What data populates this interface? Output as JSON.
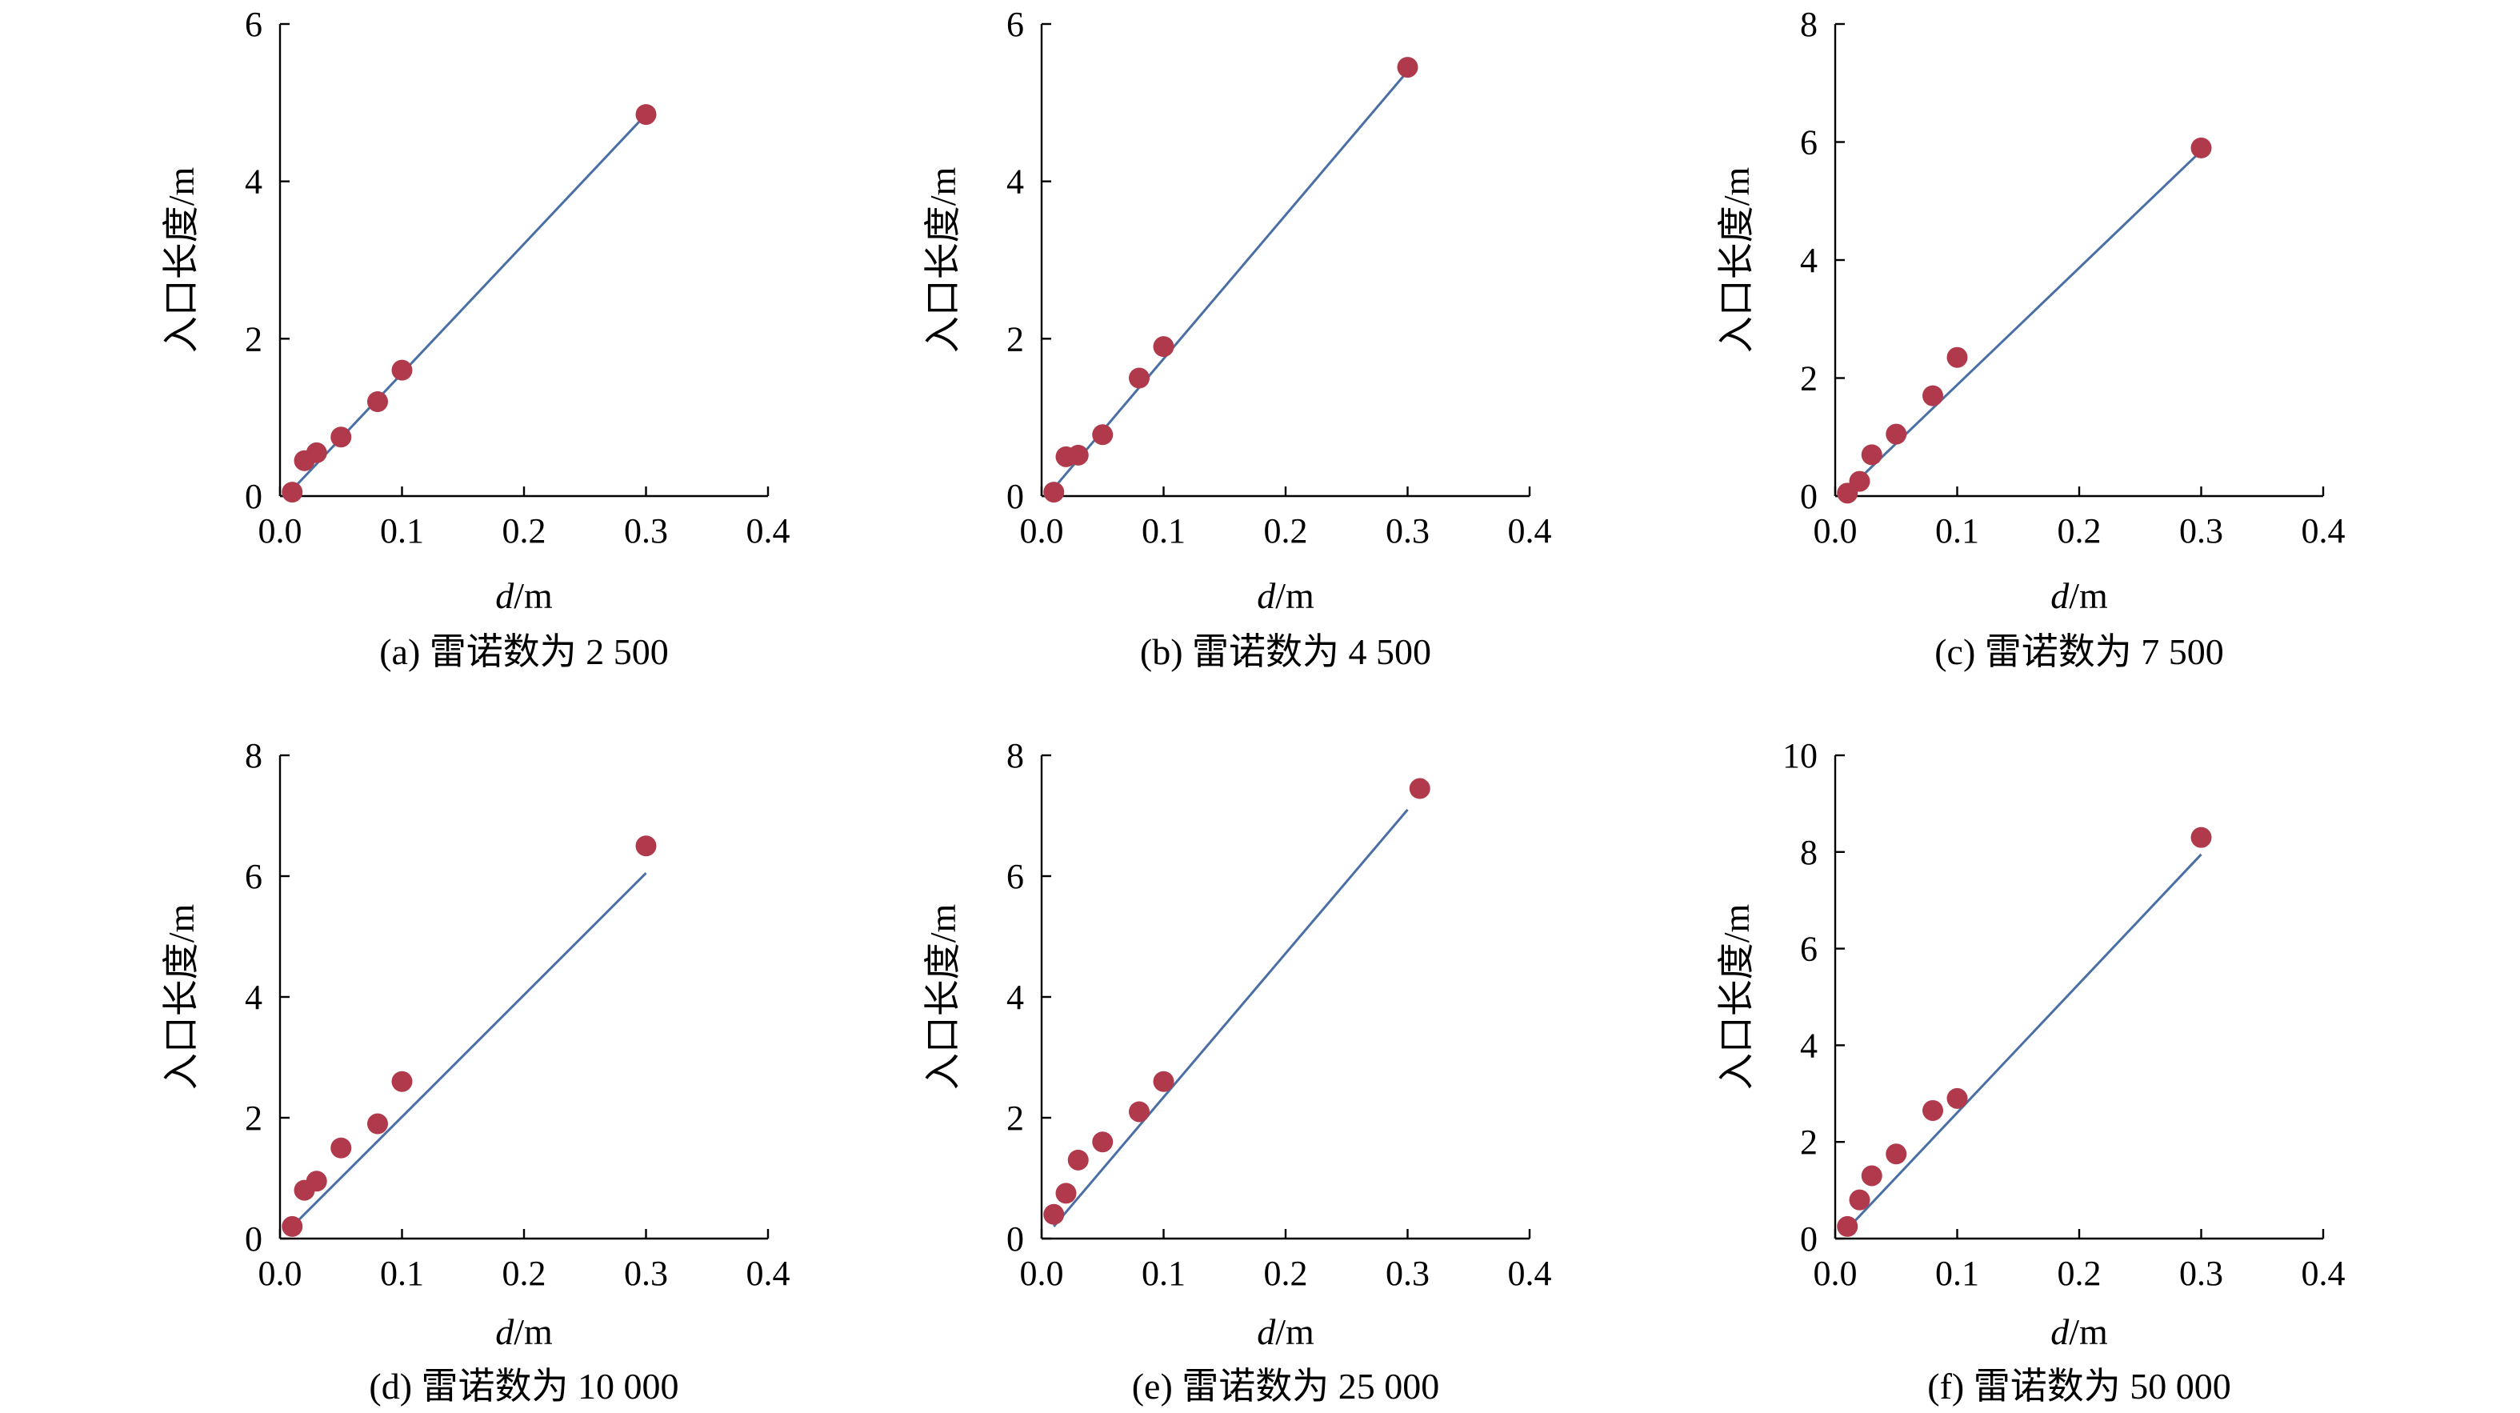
{
  "figure": {
    "colors": {
      "points": "#b03a4b",
      "fit_line": "#4a6fa5",
      "axes": "#000000"
    }
  },
  "chart_data": [
    {
      "type": "scatter",
      "caption": "(a) 雷诺数为 2 500",
      "xlabel_italic": "d",
      "xlabel_unit": "/m",
      "ylabel": "入口长度/m",
      "xlim": [
        0,
        0.4
      ],
      "ylim": [
        0,
        6
      ],
      "xticks": [
        0,
        0.1,
        0.2,
        0.3,
        0.4
      ],
      "xtick_labels": [
        "0.0",
        "0.1",
        "0.2",
        "0.3",
        "0.4"
      ],
      "yticks": [
        0,
        2,
        4,
        6
      ],
      "ytick_labels": [
        "0",
        "2",
        "4",
        "6"
      ],
      "grid": false,
      "points": [
        {
          "x": 0.01,
          "y": 0.05
        },
        {
          "x": 0.02,
          "y": 0.45
        },
        {
          "x": 0.03,
          "y": 0.55
        },
        {
          "x": 0.05,
          "y": 0.75
        },
        {
          "x": 0.08,
          "y": 1.2
        },
        {
          "x": 0.1,
          "y": 1.6
        },
        {
          "x": 0.3,
          "y": 4.85
        }
      ],
      "fit_line": [
        {
          "x": 0.01,
          "y": 0.08
        },
        {
          "x": 0.3,
          "y": 4.85
        }
      ]
    },
    {
      "type": "scatter",
      "caption": "(b) 雷诺数为 4 500",
      "xlabel_italic": "d",
      "xlabel_unit": "/m",
      "ylabel": "入口长度/m",
      "xlim": [
        0,
        0.4
      ],
      "ylim": [
        0,
        6
      ],
      "xticks": [
        0,
        0.1,
        0.2,
        0.3,
        0.4
      ],
      "xtick_labels": [
        "0.0",
        "0.1",
        "0.2",
        "0.3",
        "0.4"
      ],
      "yticks": [
        0,
        2,
        4,
        6
      ],
      "ytick_labels": [
        "0",
        "2",
        "4",
        "6"
      ],
      "grid": false,
      "points": [
        {
          "x": 0.01,
          "y": 0.05
        },
        {
          "x": 0.02,
          "y": 0.5
        },
        {
          "x": 0.03,
          "y": 0.52
        },
        {
          "x": 0.05,
          "y": 0.78
        },
        {
          "x": 0.08,
          "y": 1.5
        },
        {
          "x": 0.1,
          "y": 1.9
        },
        {
          "x": 0.3,
          "y": 5.45
        }
      ],
      "fit_line": [
        {
          "x": 0.01,
          "y": 0.1
        },
        {
          "x": 0.3,
          "y": 5.4
        }
      ]
    },
    {
      "type": "scatter",
      "caption": "(c) 雷诺数为 7 500",
      "xlabel_italic": "d",
      "xlabel_unit": "/m",
      "ylabel": "入口长度/m",
      "xlim": [
        0,
        0.4
      ],
      "ylim": [
        0,
        8
      ],
      "xticks": [
        0,
        0.1,
        0.2,
        0.3,
        0.4
      ],
      "xtick_labels": [
        "0.0",
        "0.1",
        "0.2",
        "0.3",
        "0.4"
      ],
      "yticks": [
        0,
        2,
        4,
        6,
        8
      ],
      "ytick_labels": [
        "0",
        "2",
        "4",
        "6",
        "8"
      ],
      "grid": false,
      "points": [
        {
          "x": 0.01,
          "y": 0.05
        },
        {
          "x": 0.02,
          "y": 0.25
        },
        {
          "x": 0.03,
          "y": 0.7
        },
        {
          "x": 0.05,
          "y": 1.05
        },
        {
          "x": 0.08,
          "y": 1.7
        },
        {
          "x": 0.1,
          "y": 2.35
        },
        {
          "x": 0.3,
          "y": 5.9
        }
      ],
      "fit_line": [
        {
          "x": 0.01,
          "y": 0.1
        },
        {
          "x": 0.3,
          "y": 5.85
        }
      ]
    },
    {
      "type": "scatter",
      "caption": "(d) 雷诺数为 10 000",
      "xlabel_italic": "d",
      "xlabel_unit": "/m",
      "ylabel": "入口长度/m",
      "xlim": [
        0,
        0.4
      ],
      "ylim": [
        0,
        8
      ],
      "xticks": [
        0,
        0.1,
        0.2,
        0.3,
        0.4
      ],
      "xtick_labels": [
        "0.0",
        "0.1",
        "0.2",
        "0.3",
        "0.4"
      ],
      "yticks": [
        0,
        2,
        4,
        6,
        8
      ],
      "ytick_labels": [
        "0",
        "2",
        "4",
        "6",
        "8"
      ],
      "grid": false,
      "points": [
        {
          "x": 0.01,
          "y": 0.2
        },
        {
          "x": 0.02,
          "y": 0.8
        },
        {
          "x": 0.03,
          "y": 0.95
        },
        {
          "x": 0.05,
          "y": 1.5
        },
        {
          "x": 0.08,
          "y": 1.9
        },
        {
          "x": 0.1,
          "y": 2.6
        },
        {
          "x": 0.3,
          "y": 6.5
        }
      ],
      "fit_line": [
        {
          "x": 0.01,
          "y": 0.2
        },
        {
          "x": 0.3,
          "y": 6.05
        }
      ]
    },
    {
      "type": "scatter",
      "caption": "(e) 雷诺数为 25 000",
      "xlabel_italic": "d",
      "xlabel_unit": "/m",
      "ylabel": "入口长度/m",
      "xlim": [
        0,
        0.4
      ],
      "ylim": [
        0,
        8
      ],
      "xticks": [
        0,
        0.1,
        0.2,
        0.3,
        0.4
      ],
      "xtick_labels": [
        "0.0",
        "0.1",
        "0.2",
        "0.3",
        "0.4"
      ],
      "yticks": [
        0,
        2,
        4,
        6,
        8
      ],
      "ytick_labels": [
        "0",
        "2",
        "4",
        "6",
        "8"
      ],
      "grid": false,
      "points": [
        {
          "x": 0.01,
          "y": 0.4
        },
        {
          "x": 0.02,
          "y": 0.75
        },
        {
          "x": 0.03,
          "y": 1.3
        },
        {
          "x": 0.05,
          "y": 1.6
        },
        {
          "x": 0.08,
          "y": 2.1
        },
        {
          "x": 0.1,
          "y": 2.6
        },
        {
          "x": 0.31,
          "y": 7.45
        }
      ],
      "fit_line": [
        {
          "x": 0.01,
          "y": 0.2
        },
        {
          "x": 0.3,
          "y": 7.1
        }
      ]
    },
    {
      "type": "scatter",
      "caption": "(f) 雷诺数为 50 000",
      "xlabel_italic": "d",
      "xlabel_unit": "/m",
      "ylabel": "入口长度/m",
      "xlim": [
        0,
        0.4
      ],
      "ylim": [
        0,
        10
      ],
      "xticks": [
        0,
        0.1,
        0.2,
        0.3,
        0.4
      ],
      "xtick_labels": [
        "0.0",
        "0.1",
        "0.2",
        "0.3",
        "0.4"
      ],
      "yticks": [
        0,
        2,
        4,
        6,
        8,
        10
      ],
      "ytick_labels": [
        "0",
        "2",
        "4",
        "6",
        "8",
        "10"
      ],
      "grid": false,
      "points": [
        {
          "x": 0.01,
          "y": 0.25
        },
        {
          "x": 0.02,
          "y": 0.8
        },
        {
          "x": 0.03,
          "y": 1.3
        },
        {
          "x": 0.05,
          "y": 1.75
        },
        {
          "x": 0.08,
          "y": 2.65
        },
        {
          "x": 0.1,
          "y": 2.9
        },
        {
          "x": 0.3,
          "y": 8.3
        }
      ],
      "fit_line": [
        {
          "x": 0.01,
          "y": 0.2
        },
        {
          "x": 0.3,
          "y": 7.95
        }
      ]
    }
  ]
}
